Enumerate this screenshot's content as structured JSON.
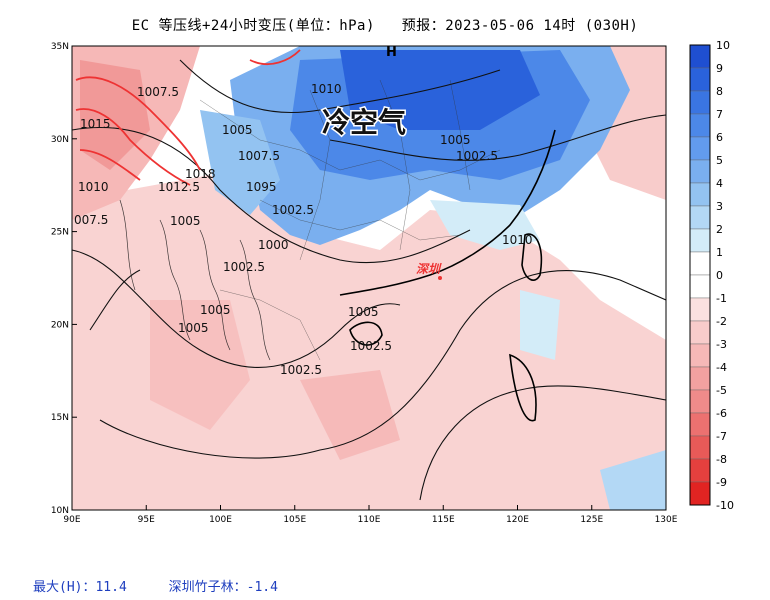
{
  "title": "EC 等压线+24小时变压(单位：hPa)   预报：2023-05-06 14时 (030H)",
  "annotations": {
    "cold_air": "冷空气",
    "high_marker": "H",
    "city": "深圳"
  },
  "isobar_labels": [
    {
      "text": "1010"
    },
    {
      "text": "1007.5"
    },
    {
      "text": "1015"
    },
    {
      "text": "1005"
    },
    {
      "text": "1007.5"
    },
    {
      "text": "1018"
    },
    {
      "text": "1010"
    },
    {
      "text": "1012.5"
    },
    {
      "text": "1095"
    },
    {
      "text": "1002.5"
    },
    {
      "text": "007.5"
    },
    {
      "text": "1005"
    },
    {
      "text": "1000"
    },
    {
      "text": "1002.5"
    },
    {
      "text": "1005"
    },
    {
      "text": "1005"
    },
    {
      "text": "1002.5"
    },
    {
      "text": "1005"
    },
    {
      "text": "1002.5"
    },
    {
      "text": "1005"
    },
    {
      "text": "1010"
    },
    {
      "text": "1002.5"
    }
  ],
  "axes": {
    "lon_ticks": [
      "90E",
      "95E",
      "100E",
      "105E",
      "110E",
      "115E",
      "120E",
      "125E",
      "130E"
    ],
    "lat_ticks": [
      "35N",
      "30N",
      "25N",
      "20N",
      "15N",
      "10N"
    ]
  },
  "colorbar": {
    "labels": [
      "10",
      "9",
      "8",
      "7",
      "6",
      "5",
      "4",
      "3",
      "2",
      "1",
      "0",
      "-1",
      "-2",
      "-3",
      "-4",
      "-5",
      "-6",
      "-7",
      "-8",
      "-9",
      "-10"
    ],
    "colors": [
      "#1f4fd1",
      "#2a62db",
      "#3a75e2",
      "#4c88e8",
      "#629bee",
      "#7aafef",
      "#93c3f1",
      "#b3d8f5",
      "#d3ecf8",
      "#ffffff",
      "#ffffff",
      "#fbe0df",
      "#f8cccb",
      "#f6b8b7",
      "#f3a1a0",
      "#ef8b8a",
      "#ec7170",
      "#e85a58",
      "#e4403e",
      "#e12422"
    ]
  },
  "footer": {
    "max": "最大(H)：11.4",
    "station": "深圳竹子林：-1.4"
  }
}
